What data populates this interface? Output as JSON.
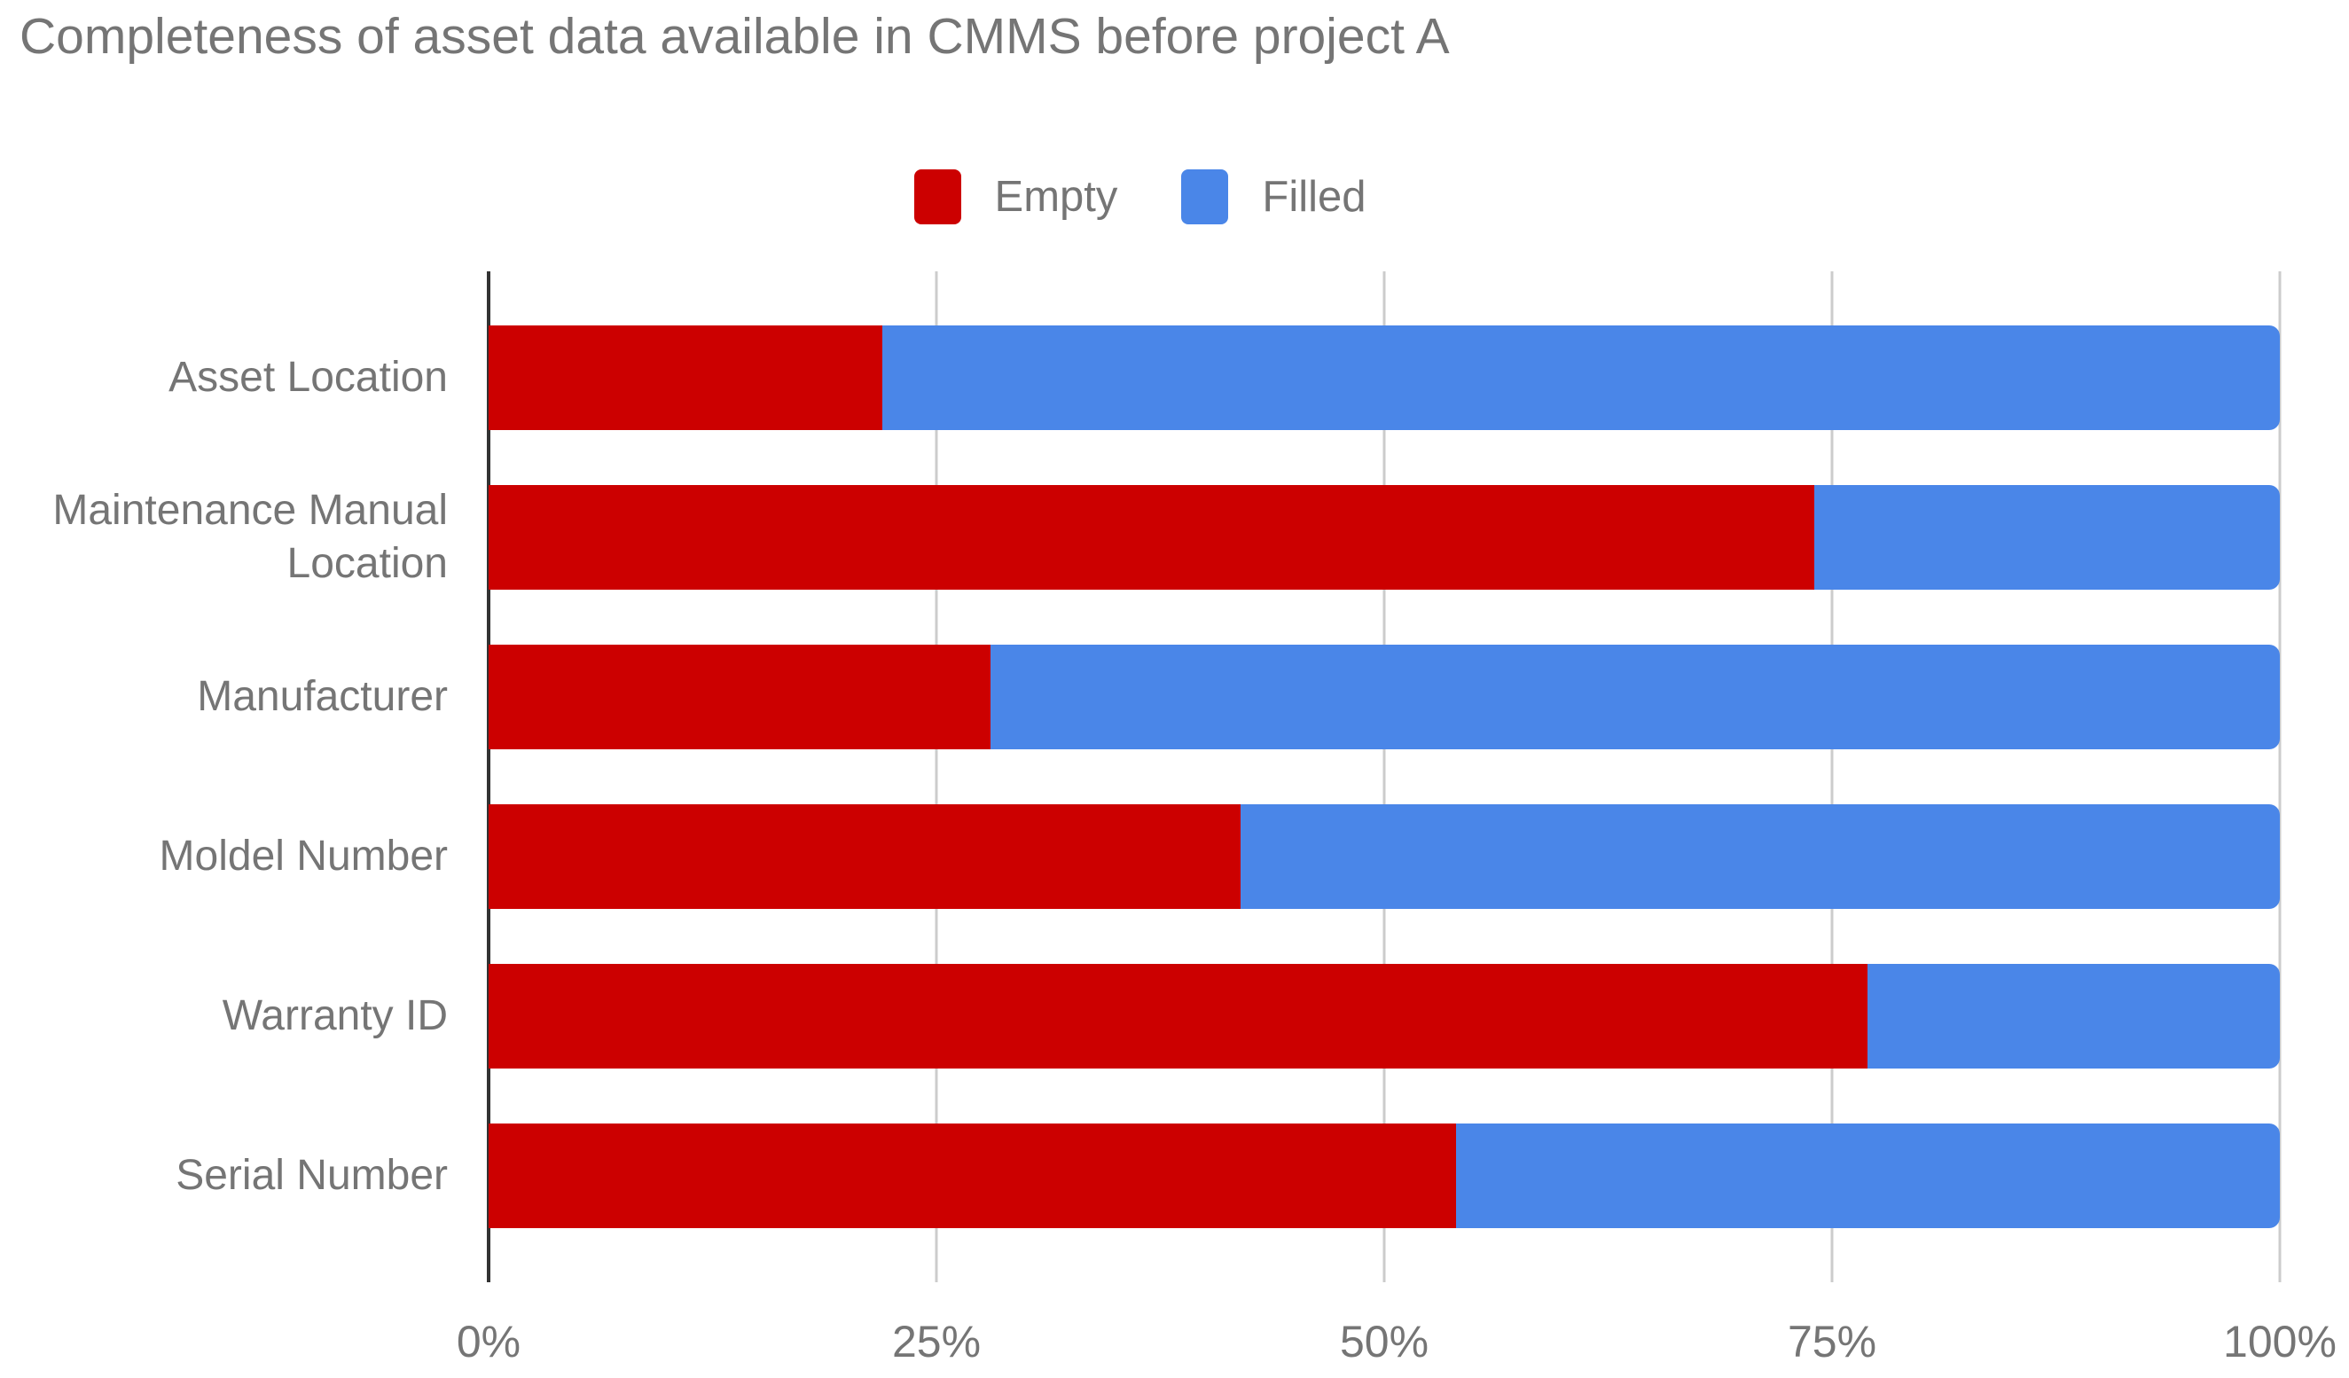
{
  "chart_data": {
    "type": "bar",
    "orientation": "horizontal",
    "stacked": true,
    "title": "Completeness of asset data available in CMMS before project A",
    "categories": [
      "Asset Location",
      "Maintenance Manual Location",
      "Manufacturer",
      "Moldel Number",
      "Warranty ID",
      "Serial Number"
    ],
    "series": [
      {
        "name": "Empty",
        "color": "#CC0000",
        "values": [
          22,
          74,
          28,
          42,
          77,
          54
        ]
      },
      {
        "name": "Filled",
        "color": "#4A86E8",
        "values": [
          78,
          26,
          72,
          58,
          23,
          46
        ]
      }
    ],
    "x_ticks": [
      "0%",
      "25%",
      "50%",
      "75%",
      "100%"
    ],
    "xlim": [
      0,
      100
    ],
    "unit": "%",
    "legend_position": "top",
    "grid": true,
    "colors": {
      "axis_line": "#333333",
      "gridline": "#cccccc",
      "text": "#757575",
      "background": "#ffffff"
    }
  }
}
